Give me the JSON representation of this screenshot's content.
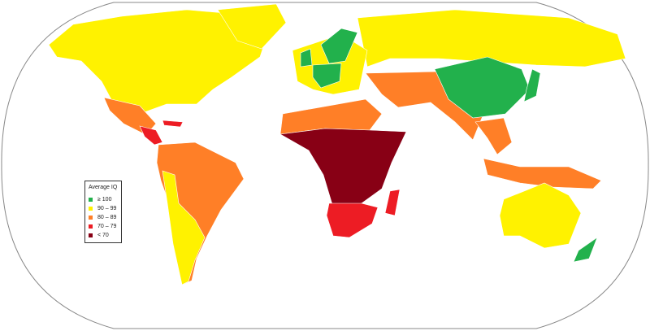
{
  "legend": {
    "title": "Average IQ",
    "items": [
      {
        "label": "≥ 100",
        "color": "#22b14c"
      },
      {
        "label": "90 – 99",
        "color": "#fff200"
      },
      {
        "label": "80 – 89",
        "color": "#ff7f27"
      },
      {
        "label": "70 – 79",
        "color": "#ed1c24"
      },
      {
        "label": "< 70",
        "color": "#880015"
      }
    ]
  },
  "colors": {
    "ocean": "#ffffff",
    "border": "#888888"
  }
}
